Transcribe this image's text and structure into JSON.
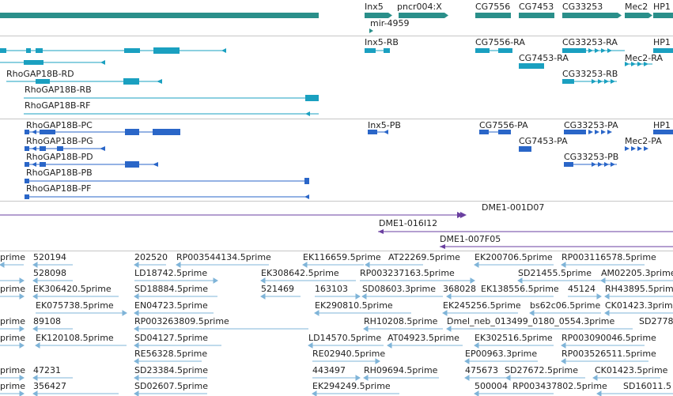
{
  "colors": {
    "gene": "#2a8f8a",
    "transcript": "#1aa0c0",
    "protein": "#2a66c8",
    "clone": "#6a3fa0",
    "est": "#7fb4d8",
    "label": "#222222",
    "divider": "#c6c6c6"
  },
  "tracks": {
    "genes": {
      "labels": [
        "Inx5",
        "pncr004:X",
        "CG7556",
        "CG7453",
        "CG33253",
        "Mec2",
        "HP1",
        "mir-4959"
      ]
    },
    "transcripts": {
      "labels": [
        "Inx5-RB",
        "CG7556-RA",
        "CG33253-RA",
        "HP1",
        "CG7453-RA",
        "Mec2-RA",
        "RhoGAP18B-RD",
        "CG33253-RB",
        "RhoGAP18B-RB",
        "RhoGAP18B-RF"
      ]
    },
    "proteins": {
      "labels": [
        "RhoGAP18B-PC",
        "Inx5-PB",
        "CG7556-PA",
        "CG33253-PA",
        "HP1",
        "RhoGAP18B-PG",
        "CG7453-PA",
        "Mec2-PA",
        "RhoGAP18B-PD",
        "CG33253-PB",
        "RhoGAP18B-PB",
        "RhoGAP18B-PF"
      ]
    },
    "clones": {
      "labels": [
        "DME1-001D07",
        "DME1-016I12",
        "DME1-007F05"
      ]
    },
    "ests": {
      "labels": [
        "prime",
        "520194",
        "202520",
        "RP003544134.5prime",
        "EK116659.5prime",
        "AT22269.5prime",
        "EK200706.5prime",
        "RP003116578.5prime",
        "528098",
        "LD18742.5prime",
        "EK308642.5prime",
        "RP003237163.5prime",
        "SD21455.5prime",
        "AM02205.3prime",
        "prime",
        "EK306420.5prime",
        "SD18884.5prime",
        "521469",
        "163103",
        "SD08603.3prime",
        "368028",
        "EK138556.5prime",
        "45124",
        "RH43895.5prime",
        "EK075738.5prime",
        "EN04723.5prime",
        "EK290810.5prime",
        "EK245256.5prime",
        "bs62c06.5prime",
        "CK01423.3prime",
        "prime",
        "89108",
        "RP003263809.5prime",
        "RH10208.5prime",
        "Dmel_neb_013499_0180_0554.3prime",
        "SD2778",
        "prime",
        "EK120108.5prime",
        "SD04127.5prime",
        "LD14570.5prime",
        "AT04923.5prime",
        "EK302516.5prime",
        "RP003090046.5prime",
        "RE56328.5prime",
        "RE02940.5prime",
        "EP00963.3prime",
        "RP003526511.5prime",
        "prime",
        "47231",
        "SD23384.5prime",
        "443497",
        "RH09694.5prime",
        "475673",
        "SD27672.5prime",
        "CK01423.5prime",
        "prime",
        "356427",
        "SD02607.5prime",
        "EK294249.5prime",
        "500004",
        "RP003437802.5prime",
        "SD16011.5"
      ]
    }
  }
}
